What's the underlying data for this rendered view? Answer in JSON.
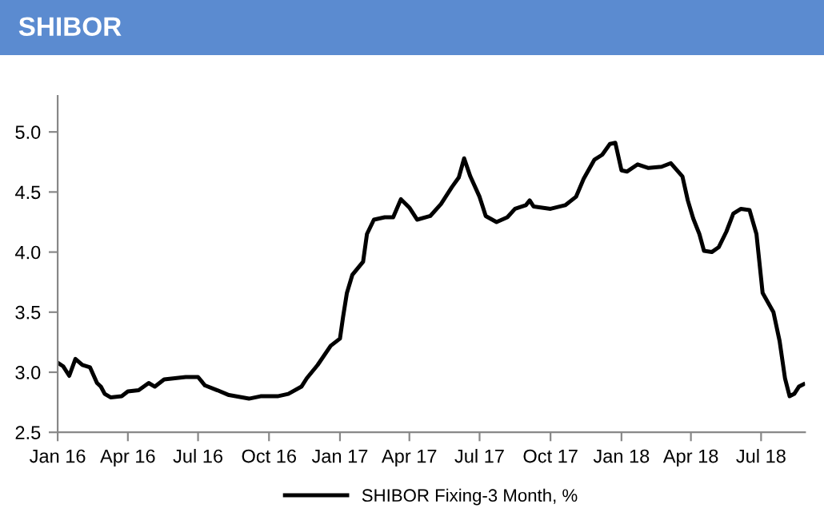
{
  "chart_data": {
    "type": "line",
    "title": "SHIBOR",
    "legend": "bottom",
    "grid": false,
    "marker": "none",
    "line_style": "solid",
    "x": [
      "2016-01-01",
      "2016-01-08",
      "2016-01-16",
      "2016-01-24",
      "2016-02-02",
      "2016-02-12",
      "2016-02-21",
      "2016-02-26",
      "2016-03-02",
      "2016-03-10",
      "2016-03-24",
      "2016-04-01",
      "2016-04-15",
      "2016-04-28",
      "2016-05-06",
      "2016-05-18",
      "2016-06-01",
      "2016-06-15",
      "2016-07-01",
      "2016-07-10",
      "2016-07-26",
      "2016-08-10",
      "2016-09-05",
      "2016-09-20",
      "2016-10-12",
      "2016-10-26",
      "2016-11-12",
      "2016-11-19",
      "2016-12-03",
      "2016-12-20",
      "2017-01-01",
      "2017-01-05",
      "2017-01-10",
      "2017-01-17",
      "2017-01-31",
      "2017-02-05",
      "2017-02-14",
      "2017-02-28",
      "2017-03-11",
      "2017-03-21",
      "2017-04-01",
      "2017-04-11",
      "2017-04-28",
      "2017-05-12",
      "2017-05-26",
      "2017-06-04",
      "2017-06-11",
      "2017-06-19",
      "2017-07-01",
      "2017-07-09",
      "2017-07-23",
      "2017-08-06",
      "2017-08-16",
      "2017-08-30",
      "2017-09-04",
      "2017-09-09",
      "2017-10-01",
      "2017-10-20",
      "2017-11-03",
      "2017-11-13",
      "2017-11-27",
      "2017-12-07",
      "2017-12-17",
      "2017-12-24",
      "2018-01-01",
      "2018-01-08",
      "2018-01-22",
      "2018-02-05",
      "2018-02-22",
      "2018-03-06",
      "2018-03-21",
      "2018-03-28",
      "2018-04-04",
      "2018-04-12",
      "2018-04-18",
      "2018-04-28",
      "2018-05-07",
      "2018-05-17",
      "2018-05-26",
      "2018-06-05",
      "2018-06-16",
      "2018-06-25",
      "2018-07-03",
      "2018-07-17",
      "2018-07-25",
      "2018-08-01",
      "2018-08-07",
      "2018-08-13",
      "2018-08-19",
      "2018-08-25"
    ],
    "series": [
      {
        "name": "SHIBOR Fixing-3 Month, %",
        "color": "#000000",
        "values": [
          3.08,
          3.05,
          2.97,
          3.11,
          3.06,
          3.04,
          2.91,
          2.88,
          2.82,
          2.79,
          2.8,
          2.84,
          2.85,
          2.91,
          2.88,
          2.94,
          2.95,
          2.96,
          2.96,
          2.89,
          2.85,
          2.81,
          2.78,
          2.8,
          2.8,
          2.82,
          2.88,
          2.95,
          3.06,
          3.22,
          3.28,
          3.46,
          3.66,
          3.81,
          3.92,
          4.15,
          4.27,
          4.29,
          4.29,
          4.44,
          4.37,
          4.27,
          4.3,
          4.4,
          4.54,
          4.62,
          4.78,
          4.63,
          4.46,
          4.3,
          4.25,
          4.29,
          4.36,
          4.39,
          4.43,
          4.38,
          4.36,
          4.39,
          4.46,
          4.61,
          4.77,
          4.81,
          4.9,
          4.91,
          4.68,
          4.67,
          4.73,
          4.7,
          4.71,
          4.74,
          4.63,
          4.43,
          4.28,
          4.15,
          4.01,
          4.0,
          4.04,
          4.17,
          4.32,
          4.36,
          4.35,
          4.15,
          3.66,
          3.5,
          3.26,
          2.95,
          2.8,
          2.82,
          2.88,
          2.9
        ]
      }
    ],
    "xlim": [
      "2016-01-01",
      "2018-08-27"
    ],
    "xticks": [
      {
        "value": "2016-01-01",
        "label": "Jan 16"
      },
      {
        "value": "2016-04-01",
        "label": "Apr 16"
      },
      {
        "value": "2016-07-01",
        "label": "Jul 16"
      },
      {
        "value": "2016-10-01",
        "label": "Oct 16"
      },
      {
        "value": "2017-01-01",
        "label": "Jan 17"
      },
      {
        "value": "2017-04-01",
        "label": "Apr 17"
      },
      {
        "value": "2017-07-01",
        "label": "Jul 17"
      },
      {
        "value": "2017-10-01",
        "label": "Oct 17"
      },
      {
        "value": "2018-01-01",
        "label": "Jan 18"
      },
      {
        "value": "2018-04-01",
        "label": "Apr 18"
      },
      {
        "value": "2018-07-01",
        "label": "Jul 18"
      }
    ],
    "ylim": [
      2.5,
      5.3
    ],
    "yticks": [
      {
        "value": 2.5,
        "label": "2.5"
      },
      {
        "value": 3.0,
        "label": "3.0"
      },
      {
        "value": 3.5,
        "label": "3.5"
      },
      {
        "value": 4.0,
        "label": "4.0"
      },
      {
        "value": 4.5,
        "label": "4.5"
      },
      {
        "value": 5.0,
        "label": "5.0"
      }
    ]
  }
}
